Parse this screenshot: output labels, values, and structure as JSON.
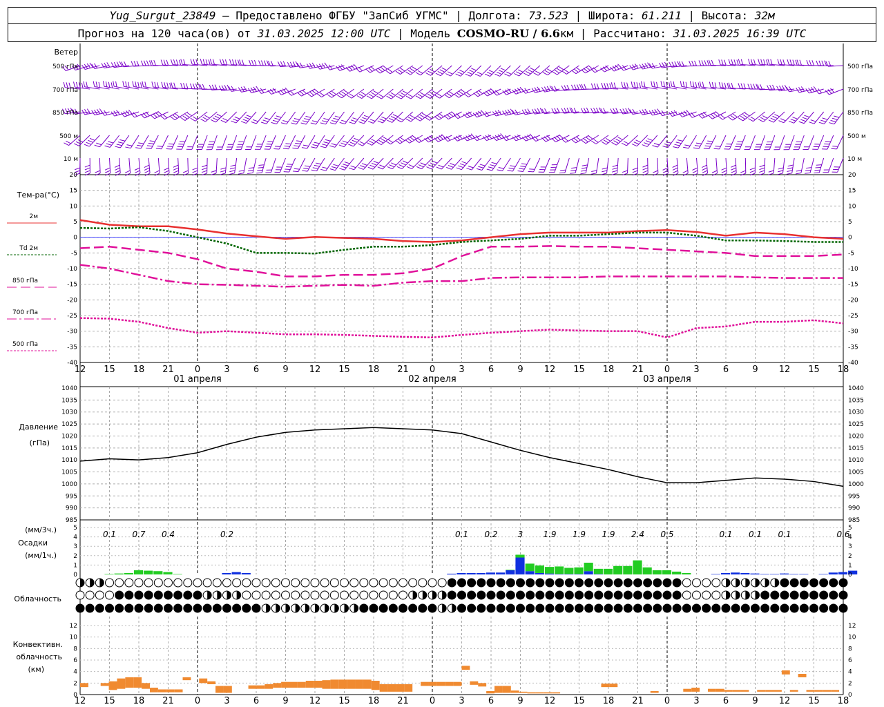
{
  "header": {
    "station": "Yug_Surgut_23849",
    "provider": " – Предоставлено ФГБУ \"ЗапСиб УГМС\"",
    "lon_label": " | Долгота: ",
    "lon": "73.523",
    "lat_label": " | Широта: ",
    "lat": "61.211",
    "alt_label": " | Высота: ",
    "alt": "32м",
    "forecast_prefix": "Прогноз на 120 часа(ов) от ",
    "run_time": "31.03.2025 12:00 UTC",
    "model_prefix": " | Модель ",
    "model": "COSMO-RU / 6.6",
    "model_unit": "км",
    "calc_prefix": " | Рассчитано: ",
    "calc_time": "31.03.2025 16:39 UTC"
  },
  "hour_ticks": [
    "12",
    "15",
    "18",
    "21",
    "0",
    "3",
    "6",
    "9",
    "12",
    "15",
    "18",
    "21",
    "0",
    "3",
    "6",
    "9",
    "12",
    "15",
    "18",
    "21",
    "0",
    "3",
    "6",
    "9",
    "12",
    "15",
    "18"
  ],
  "day_labels": [
    "01 апреля",
    "02 апреля",
    "03 апреля"
  ],
  "wind_panel": {
    "title": "Ветер",
    "levels": [
      "500 гПа",
      "700 гПа",
      "850 гПа",
      "500 м",
      "10 м"
    ]
  },
  "temp_panel": {
    "title": "Тем-ра(°C)",
    "legend": [
      "2м",
      "Td 2м",
      "850 гПа",
      "700 гПа",
      "500 гПа"
    ],
    "ticks": [
      "20",
      "15",
      "10",
      "5",
      "0",
      "-5",
      "-10",
      "-15",
      "-20",
      "-25",
      "-30",
      "-35",
      "-40"
    ]
  },
  "pressure_panel": {
    "title1": "Давление",
    "title2": "(гПа)",
    "ticks": [
      "1040",
      "1035",
      "1030",
      "1025",
      "1020",
      "1015",
      "1010",
      "1005",
      "1000",
      "995",
      "990",
      "985"
    ]
  },
  "precip_panel": {
    "title1": "(мм/3ч.)",
    "title2": "Осадки",
    "title3": "(мм/1ч.)",
    "ticks": [
      "5",
      "4",
      "3",
      "2",
      "1",
      "0"
    ],
    "totals": [
      {
        "t": 3,
        "v": "0.1"
      },
      {
        "t": 6,
        "v": "0.7"
      },
      {
        "t": 9,
        "v": "0.4"
      },
      {
        "t": 15,
        "v": "0.2"
      },
      {
        "t": 39,
        "v": "0.1"
      },
      {
        "t": 42,
        "v": "0.2"
      },
      {
        "t": 45,
        "v": "3"
      },
      {
        "t": 48,
        "v": "1.9"
      },
      {
        "t": 51,
        "v": "1.9"
      },
      {
        "t": 54,
        "v": "1.9"
      },
      {
        "t": 57,
        "v": "2.4"
      },
      {
        "t": 60,
        "v": "0.5"
      },
      {
        "t": 66,
        "v": "0.1"
      },
      {
        "t": 69,
        "v": "0.1"
      },
      {
        "t": 72,
        "v": "0.1"
      },
      {
        "t": 78,
        "v": "0.6"
      }
    ]
  },
  "cloud_panel": {
    "title": "Облачность"
  },
  "conv_panel": {
    "title1": "Конвективн.",
    "title2": "облачность",
    "title3": "(км)",
    "ticks": [
      "12",
      "10",
      "8",
      "6",
      "4",
      "2",
      "0"
    ]
  },
  "colors": {
    "wind": "#7a00c8",
    "t2m": "#e83030",
    "td2m": "#006400",
    "t850": "#e0109a",
    "t700": "#e0109a",
    "t500": "#e0109a",
    "zero": "#4040ff",
    "rain": "#22cc22",
    "snow": "#1030e0",
    "conv": "#f08a30"
  },
  "chart_data": [
    {
      "type": "line",
      "title": "Тем-ра(°C)",
      "x_hours": [
        0,
        3,
        6,
        9,
        12,
        15,
        18,
        21,
        24,
        27,
        30,
        33,
        36,
        39,
        42,
        45,
        48,
        51,
        54,
        57,
        60,
        63,
        66,
        69,
        72,
        75,
        78
      ],
      "ylim": [
        -40,
        20
      ],
      "series": [
        {
          "name": "2м",
          "values": [
            5.5,
            4,
            3.5,
            3.5,
            2.5,
            1.2,
            0.3,
            -0.5,
            0.1,
            -0.2,
            -0.5,
            -1.2,
            -1.5,
            -1,
            0,
            1,
            1.5,
            1.5,
            1.5,
            2,
            2.3,
            1.7,
            0.5,
            1.5,
            1,
            0,
            -0.5
          ]
        },
        {
          "name": "Td 2м",
          "values": [
            3,
            2.8,
            3.2,
            2,
            0,
            -2,
            -5,
            -5,
            -5.2,
            -4,
            -3,
            -3,
            -2.5,
            -1.5,
            -1,
            -0.5,
            0.5,
            0.5,
            1,
            1.5,
            1.5,
            0.5,
            -1,
            -1,
            -1.2,
            -1.5,
            -1.5
          ]
        },
        {
          "name": "850 гПа",
          "values": [
            -3.5,
            -3,
            -4,
            -5,
            -7,
            -10,
            -11,
            -12.5,
            -12.5,
            -12,
            -12,
            -11.5,
            -10,
            -6,
            -3,
            -3,
            -2.8,
            -3,
            -3,
            -3.5,
            -4,
            -4.5,
            -5,
            -6,
            -6,
            -6,
            -5.5
          ]
        },
        {
          "name": "700 гПа",
          "values": [
            -8.8,
            -10,
            -12,
            -14,
            -15,
            -15.2,
            -15.5,
            -15.8,
            -15.5,
            -15.2,
            -15.5,
            -14.5,
            -14,
            -14,
            -13,
            -12.8,
            -12.8,
            -12.8,
            -12.5,
            -12.5,
            -12.5,
            -12.5,
            -12.5,
            -12.8,
            -13,
            -13,
            -13
          ]
        },
        {
          "name": "500 гПа",
          "values": [
            -25.8,
            -26,
            -27,
            -29,
            -30.5,
            -30,
            -30.5,
            -31,
            -31,
            -31.2,
            -31.5,
            -31.8,
            -32,
            -31.2,
            -30.5,
            -30,
            -29.5,
            -29.8,
            -30,
            -30,
            -32,
            -29,
            -28.5,
            -27,
            -27,
            -26.5,
            -27.5
          ]
        }
      ]
    },
    {
      "type": "line",
      "title": "Давление (гПа)",
      "x_hours": [
        0,
        3,
        6,
        9,
        12,
        15,
        18,
        21,
        24,
        27,
        30,
        33,
        36,
        39,
        42,
        45,
        48,
        51,
        54,
        57,
        60,
        63,
        66,
        69,
        72,
        75,
        78
      ],
      "ylim": [
        985,
        1040
      ],
      "values": [
        1009.5,
        1010.5,
        1010,
        1011,
        1013,
        1016.5,
        1019.5,
        1021.5,
        1022.5,
        1023,
        1023.5,
        1023,
        1022.5,
        1021,
        1017.5,
        1014,
        1011,
        1008.5,
        1006,
        1003,
        1000.5,
        1000.5,
        1001.5,
        1002.5,
        1002,
        1001,
        999
      ]
    },
    {
      "type": "bar",
      "title": "Осадки (мм/1ч.)",
      "x_hours": [
        3,
        4,
        5,
        6,
        7,
        8,
        9,
        10,
        15,
        16,
        17,
        38,
        39,
        40,
        41,
        42,
        43,
        44,
        45,
        46,
        47,
        48,
        49,
        50,
        51,
        52,
        53,
        54,
        55,
        56,
        57,
        58,
        59,
        60,
        61,
        62,
        65,
        66,
        67,
        68,
        69,
        70,
        71,
        72,
        73,
        74,
        76,
        77,
        78,
        79
      ],
      "ylim": [
        0,
        5
      ],
      "series": [
        {
          "name": "rain",
          "values": [
            0.05,
            0.1,
            0.15,
            0.45,
            0.4,
            0.35,
            0.25,
            0.05,
            0,
            0,
            0,
            0,
            0,
            0,
            0,
            0,
            0,
            0.05,
            0.3,
            0.8,
            0.8,
            0.7,
            0.8,
            0.65,
            0.7,
            0.9,
            0.55,
            0.6,
            0.9,
            0.9,
            1.5,
            0.75,
            0.45,
            0.45,
            0.3,
            0.15,
            0,
            0,
            0,
            0,
            0,
            0,
            0,
            0,
            0,
            0,
            0,
            0,
            0,
            0
          ]
        },
        {
          "name": "snow",
          "values": [
            0,
            0,
            0,
            0,
            0,
            0,
            0,
            0,
            0.15,
            0.25,
            0.15,
            0.08,
            0.15,
            0.15,
            0.15,
            0.2,
            0.2,
            0.45,
            1.8,
            0.35,
            0.15,
            0.1,
            0.05,
            0.05,
            0.05,
            0.35,
            0.05,
            0,
            0,
            0,
            0,
            0,
            0,
            0,
            0,
            0,
            0.05,
            0.15,
            0.2,
            0.15,
            0.1,
            0.05,
            0.05,
            0.1,
            0.05,
            0.05,
            0.05,
            0.2,
            0.25,
            0.4
          ]
        }
      ]
    },
    {
      "type": "bar",
      "title": "Конвективн. облачность (км)",
      "ylim": [
        0,
        13
      ],
      "bars": [
        {
          "x": 0.5,
          "b": 1.3,
          "t": 2.0
        },
        {
          "x": 3,
          "b": 1.5,
          "t": 2.0
        },
        {
          "x": 4,
          "b": 0.8,
          "t": 2.3
        },
        {
          "x": 5,
          "b": 1.0,
          "t": 2.8
        },
        {
          "x": 6,
          "b": 1.2,
          "t": 3.0
        },
        {
          "x": 7,
          "b": 1.2,
          "t": 3.0
        },
        {
          "x": 8,
          "b": 1.0,
          "t": 2.0
        },
        {
          "x": 9,
          "b": 0.4,
          "t": 1.2
        },
        {
          "x": 10,
          "b": 0.4,
          "t": 0.9
        },
        {
          "x": 11,
          "b": 0.4,
          "t": 0.9
        },
        {
          "x": 12,
          "b": 0.4,
          "t": 0.9
        },
        {
          "x": 13,
          "b": 2.5,
          "t": 3.0
        },
        {
          "x": 15,
          "b": 2.0,
          "t": 2.8
        },
        {
          "x": 16,
          "b": 1.8,
          "t": 2.3
        },
        {
          "x": 17,
          "b": 0.3,
          "t": 1.5
        },
        {
          "x": 18,
          "b": 0.3,
          "t": 1.5
        },
        {
          "x": 21,
          "b": 1.0,
          "t": 1.6
        },
        {
          "x": 22,
          "b": 1.0,
          "t": 1.6
        },
        {
          "x": 23,
          "b": 1.0,
          "t": 1.8
        },
        {
          "x": 24,
          "b": 1.2,
          "t": 2.0
        },
        {
          "x": 25,
          "b": 1.2,
          "t": 2.2
        },
        {
          "x": 26,
          "b": 1.2,
          "t": 2.2
        },
        {
          "x": 27,
          "b": 1.2,
          "t": 2.2
        },
        {
          "x": 28,
          "b": 1.2,
          "t": 2.4
        },
        {
          "x": 29,
          "b": 1.2,
          "t": 2.4
        },
        {
          "x": 30,
          "b": 1.0,
          "t": 2.5
        },
        {
          "x": 31,
          "b": 1.0,
          "t": 2.6
        },
        {
          "x": 32,
          "b": 1.0,
          "t": 2.6
        },
        {
          "x": 33,
          "b": 1.0,
          "t": 2.6
        },
        {
          "x": 34,
          "b": 1.0,
          "t": 2.6
        },
        {
          "x": 35,
          "b": 1.0,
          "t": 2.6
        },
        {
          "x": 36,
          "b": 0.8,
          "t": 2.4
        },
        {
          "x": 37,
          "b": 0.5,
          "t": 1.8
        },
        {
          "x": 38,
          "b": 0.5,
          "t": 1.8
        },
        {
          "x": 39,
          "b": 0.5,
          "t": 1.8
        },
        {
          "x": 40,
          "b": 0.5,
          "t": 1.8
        },
        {
          "x": 42,
          "b": 1.5,
          "t": 2.2
        },
        {
          "x": 43,
          "b": 1.5,
          "t": 2.2
        },
        {
          "x": 44,
          "b": 1.5,
          "t": 2.2
        },
        {
          "x": 45,
          "b": 1.5,
          "t": 2.2
        },
        {
          "x": 46,
          "b": 1.5,
          "t": 2.2
        },
        {
          "x": 47,
          "b": 4.3,
          "t": 5.0
        },
        {
          "x": 48,
          "b": 1.7,
          "t": 2.3
        },
        {
          "x": 49,
          "b": 1.4,
          "t": 2.0
        },
        {
          "x": 50,
          "b": 0.2,
          "t": 0.6
        },
        {
          "x": 51,
          "b": 0.3,
          "t": 1.5
        },
        {
          "x": 52,
          "b": 0.3,
          "t": 1.5
        },
        {
          "x": 53,
          "b": 0.3,
          "t": 0.7
        },
        {
          "x": 54,
          "b": 0.3,
          "t": 0.5
        },
        {
          "x": 55,
          "b": 0.2,
          "t": 0.4
        },
        {
          "x": 56,
          "b": 0.2,
          "t": 0.4
        },
        {
          "x": 57,
          "b": 0.2,
          "t": 0.4
        },
        {
          "x": 58,
          "b": 0.2,
          "t": 0.4
        },
        {
          "x": 64,
          "b": 1.3,
          "t": 1.9
        },
        {
          "x": 65,
          "b": 1.3,
          "t": 1.9
        },
        {
          "x": 70,
          "b": 0.3,
          "t": 0.6
        },
        {
          "x": 74,
          "b": 0.5,
          "t": 1.0
        },
        {
          "x": 75,
          "b": 0.5,
          "t": 1.2
        },
        {
          "x": 77,
          "b": 0.5,
          "t": 1.0
        },
        {
          "x": 78,
          "b": 0.5,
          "t": 1.0
        },
        {
          "x": 79,
          "b": 0.5,
          "t": 0.8
        },
        {
          "x": 80,
          "b": 0.5,
          "t": 0.8
        },
        {
          "x": 81,
          "b": 0.5,
          "t": 0.8
        },
        {
          "x": 83,
          "b": 0.5,
          "t": 0.8
        },
        {
          "x": 84,
          "b": 0.5,
          "t": 0.8
        },
        {
          "x": 85,
          "b": 0.5,
          "t": 0.8
        },
        {
          "x": 86,
          "b": 3.5,
          "t": 4.2
        },
        {
          "x": 87,
          "b": 0.5,
          "t": 0.8
        },
        {
          "x": 88,
          "b": 3.0,
          "t": 3.6
        },
        {
          "x": 89,
          "b": 0.5,
          "t": 0.8
        },
        {
          "x": 90,
          "b": 0.5,
          "t": 0.8
        },
        {
          "x": 91,
          "b": 0.5,
          "t": 0.8
        },
        {
          "x": 92,
          "b": 0.5,
          "t": 0.8
        }
      ]
    }
  ]
}
